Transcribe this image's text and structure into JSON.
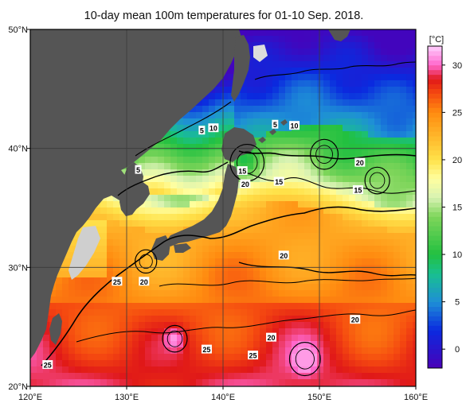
{
  "title": "10-day mean 100m temperatures for 01-10 Sep. 2018.",
  "map": {
    "lon_range": [
      120,
      160
    ],
    "lat_range": [
      20,
      50
    ],
    "lon_ticks": [
      {
        "value": 120,
        "label": "120°E"
      },
      {
        "value": 130,
        "label": "130°E"
      },
      {
        "value": 140,
        "label": "140°E"
      },
      {
        "value": 150,
        "label": "150°E"
      },
      {
        "value": 160,
        "label": "160°E"
      }
    ],
    "lat_ticks": [
      {
        "value": 20,
        "label": "20°N"
      },
      {
        "value": 30,
        "label": "30°N"
      },
      {
        "value": 40,
        "label": "40°N"
      },
      {
        "value": 50,
        "label": "50°N"
      }
    ],
    "land_color": "#555555",
    "gridline_color": "#3a3a3a"
  },
  "colorbar": {
    "unit": "[°C]",
    "range": [
      -2,
      32
    ],
    "ticks": [
      {
        "value": 0,
        "label": "0"
      },
      {
        "value": 5,
        "label": "5"
      },
      {
        "value": 10,
        "label": "10"
      },
      {
        "value": 15,
        "label": "15"
      },
      {
        "value": 20,
        "label": "20"
      },
      {
        "value": 25,
        "label": "25"
      },
      {
        "value": 30,
        "label": "30"
      }
    ],
    "stops": [
      {
        "t": -2,
        "color": "#4a00b8"
      },
      {
        "t": 2,
        "color": "#0a2adf"
      },
      {
        "t": 5,
        "color": "#1e8fd6"
      },
      {
        "t": 8,
        "color": "#19c08f"
      },
      {
        "t": 10,
        "color": "#22c040"
      },
      {
        "t": 14,
        "color": "#7ed55a"
      },
      {
        "t": 16,
        "color": "#d7f2b2"
      },
      {
        "t": 18,
        "color": "#ffffa0"
      },
      {
        "t": 20,
        "color": "#ffe24a"
      },
      {
        "t": 22,
        "color": "#ffbf30"
      },
      {
        "t": 25,
        "color": "#ff8c10"
      },
      {
        "t": 27,
        "color": "#f54a10"
      },
      {
        "t": 28.5,
        "color": "#e01818"
      },
      {
        "t": 30,
        "color": "#ff66cc"
      },
      {
        "t": 32,
        "color": "#ffd0ff"
      }
    ]
  },
  "contour_labels": [
    {
      "text": "5",
      "lon": 137.8,
      "lat": 41.5
    },
    {
      "text": "10",
      "lon": 139.0,
      "lat": 41.7
    },
    {
      "text": "5",
      "lon": 131.2,
      "lat": 38.2
    },
    {
      "text": "5",
      "lon": 145.4,
      "lat": 42.0
    },
    {
      "text": "10",
      "lon": 147.4,
      "lat": 41.9
    },
    {
      "text": "20",
      "lon": 154.2,
      "lat": 38.8
    },
    {
      "text": "15",
      "lon": 142.0,
      "lat": 38.1
    },
    {
      "text": "20",
      "lon": 142.3,
      "lat": 37.0
    },
    {
      "text": "15",
      "lon": 145.8,
      "lat": 37.2
    },
    {
      "text": "15",
      "lon": 154.0,
      "lat": 36.5
    },
    {
      "text": "20",
      "lon": 146.3,
      "lat": 31.0
    },
    {
      "text": "25",
      "lon": 129.0,
      "lat": 28.8
    },
    {
      "text": "20",
      "lon": 131.8,
      "lat": 28.8
    },
    {
      "text": "20",
      "lon": 153.7,
      "lat": 25.6
    },
    {
      "text": "20",
      "lon": 145.0,
      "lat": 24.1
    },
    {
      "text": "25",
      "lon": 138.3,
      "lat": 23.1
    },
    {
      "text": "25",
      "lon": 143.1,
      "lat": 22.6
    },
    {
      "text": "25",
      "lon": 121.8,
      "lat": 21.8
    }
  ]
}
